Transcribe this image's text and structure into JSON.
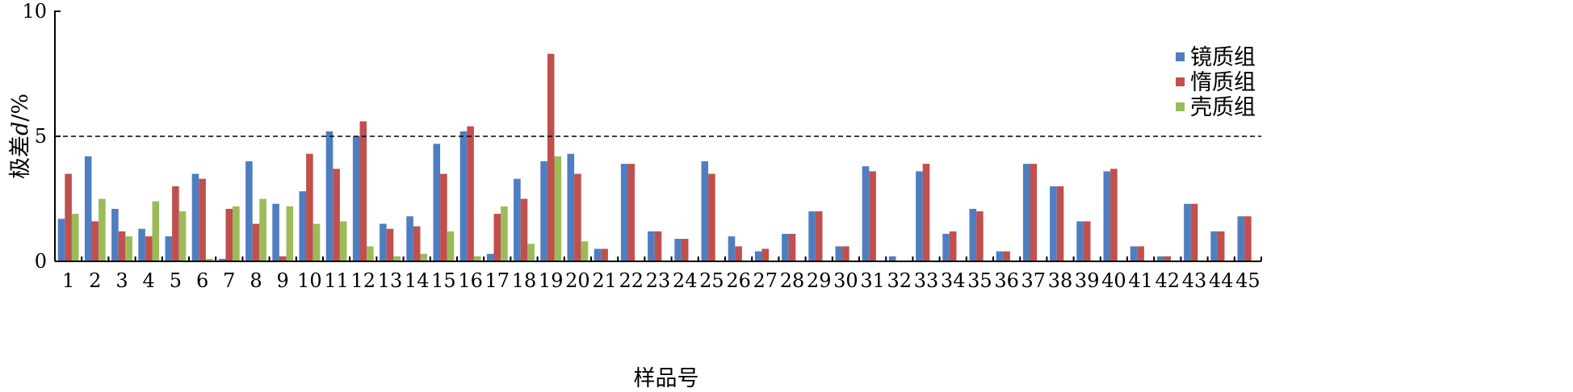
{
  "chart_data": {
    "type": "bar",
    "xlabel": "样品号",
    "ylabel": "极差d/%",
    "ylabel_prefix": "极差",
    "ylabel_var": "d",
    "ylabel_suffix": "/%",
    "ylim": [
      0,
      10
    ],
    "yticks": [
      0,
      5,
      10
    ],
    "reference_line": 5,
    "legend_position": "right",
    "grid": false,
    "categories": [
      "1",
      "2",
      "3",
      "4",
      "5",
      "6",
      "7",
      "8",
      "9",
      "10",
      "11",
      "12",
      "13",
      "14",
      "15",
      "16",
      "17",
      "18",
      "19",
      "20",
      "21",
      "22",
      "23",
      "24",
      "25",
      "26",
      "27",
      "28",
      "29",
      "30",
      "31",
      "32",
      "33",
      "34",
      "35",
      "36",
      "37",
      "38",
      "39",
      "40",
      "41",
      "42",
      "43",
      "44",
      "45"
    ],
    "series": [
      {
        "name": "镜质组",
        "color": "#4f7ec0",
        "values": [
          1.7,
          4.2,
          2.1,
          1.3,
          1.0,
          3.5,
          0.1,
          4.0,
          2.3,
          2.8,
          5.2,
          5.0,
          1.5,
          1.8,
          4.7,
          5.2,
          0.3,
          3.3,
          4.0,
          4.3,
          0.5,
          3.9,
          1.2,
          0.9,
          4.0,
          1.0,
          0.4,
          1.1,
          2.0,
          0.6,
          3.8,
          0.2,
          3.6,
          1.1,
          2.1,
          0.4,
          3.9,
          3.0,
          1.6,
          3.6,
          0.6,
          0.2,
          2.3,
          1.2,
          1.8
        ]
      },
      {
        "name": "惰质组",
        "color": "#c0504d",
        "values": [
          3.5,
          1.6,
          1.2,
          1.0,
          3.0,
          3.3,
          2.1,
          1.5,
          0.2,
          4.3,
          3.7,
          5.6,
          1.3,
          1.4,
          3.5,
          5.4,
          1.9,
          2.5,
          8.3,
          3.5,
          0.5,
          3.9,
          1.2,
          0.9,
          3.5,
          0.6,
          0.5,
          1.1,
          2.0,
          0.6,
          3.6,
          0.0,
          3.9,
          1.2,
          2.0,
          0.4,
          3.9,
          3.0,
          1.6,
          3.7,
          0.6,
          0.2,
          2.3,
          1.2,
          1.8
        ]
      },
      {
        "name": "壳质组",
        "color": "#9bbb59",
        "values": [
          1.9,
          2.5,
          1.0,
          2.4,
          2.0,
          0.1,
          2.2,
          2.5,
          2.2,
          1.5,
          1.6,
          0.6,
          0.2,
          0.3,
          1.2,
          0.2,
          2.2,
          0.7,
          4.2,
          0.8,
          0,
          0,
          0,
          0,
          0,
          0,
          0,
          0,
          0,
          0,
          0,
          0,
          0,
          0,
          0,
          0,
          0,
          0,
          0,
          0,
          0,
          0,
          0,
          0,
          0
        ]
      }
    ]
  }
}
